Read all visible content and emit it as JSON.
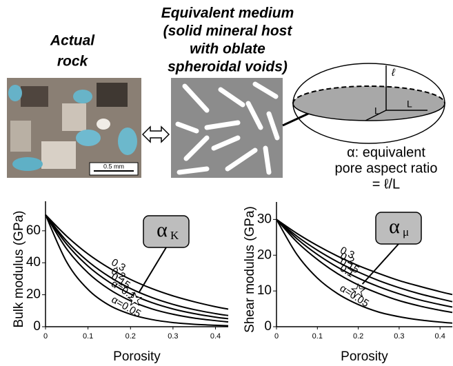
{
  "figure": {
    "rock_title": [
      "Actual",
      "rock"
    ],
    "medium_title": [
      "Equivalent medium",
      "(solid mineral host",
      "with oblate",
      "spheroidal voids)"
    ],
    "scale_bar": "0.5 mm",
    "spheroid_labels": [
      "ℓ",
      "L",
      "L"
    ],
    "caption": [
      "α: equivalent",
      "pore aspect ratio",
      "= ℓ/L"
    ]
  },
  "chart_data": [
    {
      "type": "line",
      "x_label": "Porosity",
      "y_label": "Bulk modulus (GPa)",
      "x": [
        0,
        0.05,
        0.1,
        0.15,
        0.2,
        0.25,
        0.3,
        0.35,
        0.4,
        0.43
      ],
      "xlim": [
        0,
        0.43
      ],
      "xticks": [
        0,
        0.1,
        0.2,
        0.3,
        0.4
      ],
      "ylim": [
        0,
        72
      ],
      "yticks": [
        0,
        20,
        40,
        60
      ],
      "series": [
        {
          "name": "0.3",
          "color": "#000000",
          "values": [
            70,
            56.6,
            45.5,
            36.7,
            29.6,
            23.9,
            19.3,
            15.6,
            12.5,
            11.0
          ]
        },
        {
          "name": "0.2",
          "color": "#000000",
          "values": [
            70,
            53.5,
            40.9,
            31.3,
            23.9,
            18.3,
            14.0,
            10.7,
            8.2,
            7.0
          ]
        },
        {
          "name": "0.15",
          "color": "#000000",
          "values": [
            70,
            51.6,
            37.9,
            27.9,
            20.5,
            15.1,
            11.1,
            8.2,
            6.0,
            5.0
          ]
        },
        {
          "name": "α=0.1",
          "color": "#000000",
          "values": [
            70,
            48.6,
            33.7,
            23.4,
            16.2,
            11.2,
            7.8,
            5.4,
            3.8,
            3.0
          ]
        },
        {
          "name": "α=0.05",
          "color": "#000000",
          "values": [
            70,
            40.4,
            23.3,
            13.4,
            7.8,
            4.5,
            2.6,
            1.5,
            0.9,
            0.6
          ]
        }
      ],
      "star": {
        "x": 0.21,
        "y": 17
      },
      "annotation": "α",
      "annotation_sub": "K"
    },
    {
      "type": "line",
      "x_label": "Porosity",
      "y_label": "Shear modulus (GPa)",
      "x": [
        0,
        0.05,
        0.1,
        0.15,
        0.2,
        0.25,
        0.3,
        0.35,
        0.4,
        0.43
      ],
      "xlim": [
        0,
        0.43
      ],
      "xticks": [
        0,
        0.1,
        0.2,
        0.3,
        0.4
      ],
      "ylim": [
        0,
        32
      ],
      "yticks": [
        0,
        10,
        20,
        30
      ],
      "series": [
        {
          "name": "0.3",
          "color": "#000000",
          "values": [
            30,
            26.1,
            22.7,
            19.7,
            17.1,
            14.9,
            12.9,
            11.3,
            9.8,
            9.0
          ]
        },
        {
          "name": "0.2",
          "color": "#000000",
          "values": [
            30,
            25.3,
            21.4,
            18.1,
            15.3,
            12.9,
            10.9,
            9.2,
            7.8,
            7.0
          ]
        },
        {
          "name": "0.15",
          "color": "#000000",
          "values": [
            30,
            24.6,
            20.2,
            16.6,
            13.6,
            11.2,
            9.2,
            7.5,
            6.2,
            5.5
          ]
        },
        {
          "name": "0.1",
          "color": "#000000",
          "values": [
            30,
            23.7,
            18.8,
            14.8,
            11.7,
            9.3,
            7.3,
            5.8,
            4.6,
            4.0
          ]
        },
        {
          "name": "α=0.05",
          "color": "#000000",
          "values": [
            30,
            20.2,
            13.6,
            9.2,
            6.2,
            4.1,
            2.8,
            1.9,
            1.3,
            1.0
          ]
        }
      ],
      "star": {
        "x": 0.2,
        "y": 10
      },
      "annotation": "α",
      "annotation_sub": "μ"
    }
  ]
}
